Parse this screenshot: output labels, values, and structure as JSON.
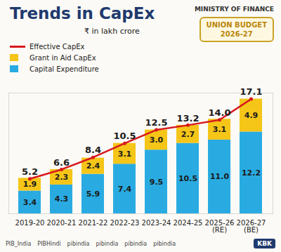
{
  "chart_data": {
    "type": "bar",
    "title": "Trends in CapEx",
    "subtitle": "₹ in lakh crore",
    "categories": [
      "2019-20",
      "2020-21",
      "2021-22",
      "2022-23",
      "2023-24",
      "2024-25",
      "2025-26 (RE)",
      "2026-27 (BE)"
    ],
    "series": [
      {
        "name": "Capital Expenditure",
        "color": "#29abe2",
        "values": [
          3.4,
          4.3,
          5.9,
          7.4,
          9.5,
          10.5,
          11.0,
          12.2
        ],
        "value_labels": [
          "3.4",
          "4.3",
          "5.9",
          "7.4",
          "9.5",
          "10.5",
          "11.0",
          "12.2"
        ]
      },
      {
        "name": "Grant in Aid CapEx",
        "color": "#f5c518",
        "values": [
          1.9,
          2.3,
          2.4,
          3.1,
          3.0,
          2.7,
          3.1,
          4.9
        ],
        "value_labels": [
          "1.9",
          "2.3",
          "2.4",
          "3.1",
          "3.0",
          "2.7",
          "3.1",
          "4.9"
        ]
      },
      {
        "name": "Effective CapEx",
        "type": "line",
        "color": "#d7191c",
        "marker": "circle",
        "values": [
          5.2,
          6.6,
          8.4,
          10.5,
          12.5,
          13.2,
          14.0,
          17.1
        ],
        "value_labels": [
          "5.2",
          "6.6",
          "8.4",
          "10.5",
          "12.5",
          "13.2",
          "14.0",
          "17.1"
        ]
      }
    ],
    "stacked": true,
    "data_labels": true,
    "ylim": [
      0,
      18
    ],
    "yticks": [],
    "tick_labels": "x",
    "grid": false,
    "legend": "top-left",
    "annotations": [
      "MINISTRY OF FINANCE",
      "UNION BUDGET",
      "2026-27",
      "PIB_India",
      "PIBHindi",
      "pibindia",
      "pibindia",
      "pibindia",
      "pibindia",
      "KBK"
    ]
  }
}
